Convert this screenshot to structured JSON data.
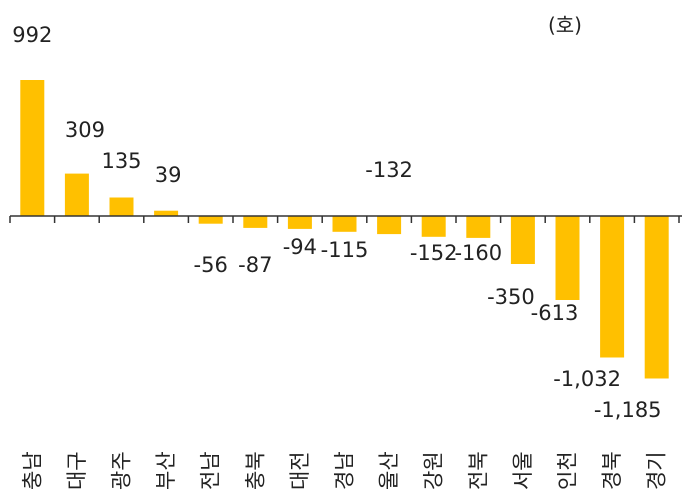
{
  "chart_data": {
    "type": "bar",
    "unit_label": "(호)",
    "categories": [
      "충남",
      "대구",
      "광주",
      "부산",
      "전남",
      "충북",
      "대전",
      "경남",
      "울산",
      "강원",
      "전북",
      "서울",
      "인천",
      "경북",
      "경기"
    ],
    "values": [
      992,
      309,
      135,
      39,
      -56,
      -87,
      -94,
      -115,
      -132,
      -152,
      -160,
      -350,
      -613,
      -1032,
      -1185
    ],
    "value_labels": [
      "992",
      "309",
      "135",
      "39",
      "-56",
      "-87",
      "-94",
      "-115",
      "-132",
      "-152",
      "-160",
      "-350",
      "-613",
      "-1,032",
      "-1,185"
    ],
    "ylim": [
      -1185,
      992
    ],
    "title": "",
    "xlabel": "",
    "ylabel": "",
    "grid": false,
    "bar_color": "#FFC000",
    "axis_color": "#333333",
    "text_color": "#222222"
  }
}
